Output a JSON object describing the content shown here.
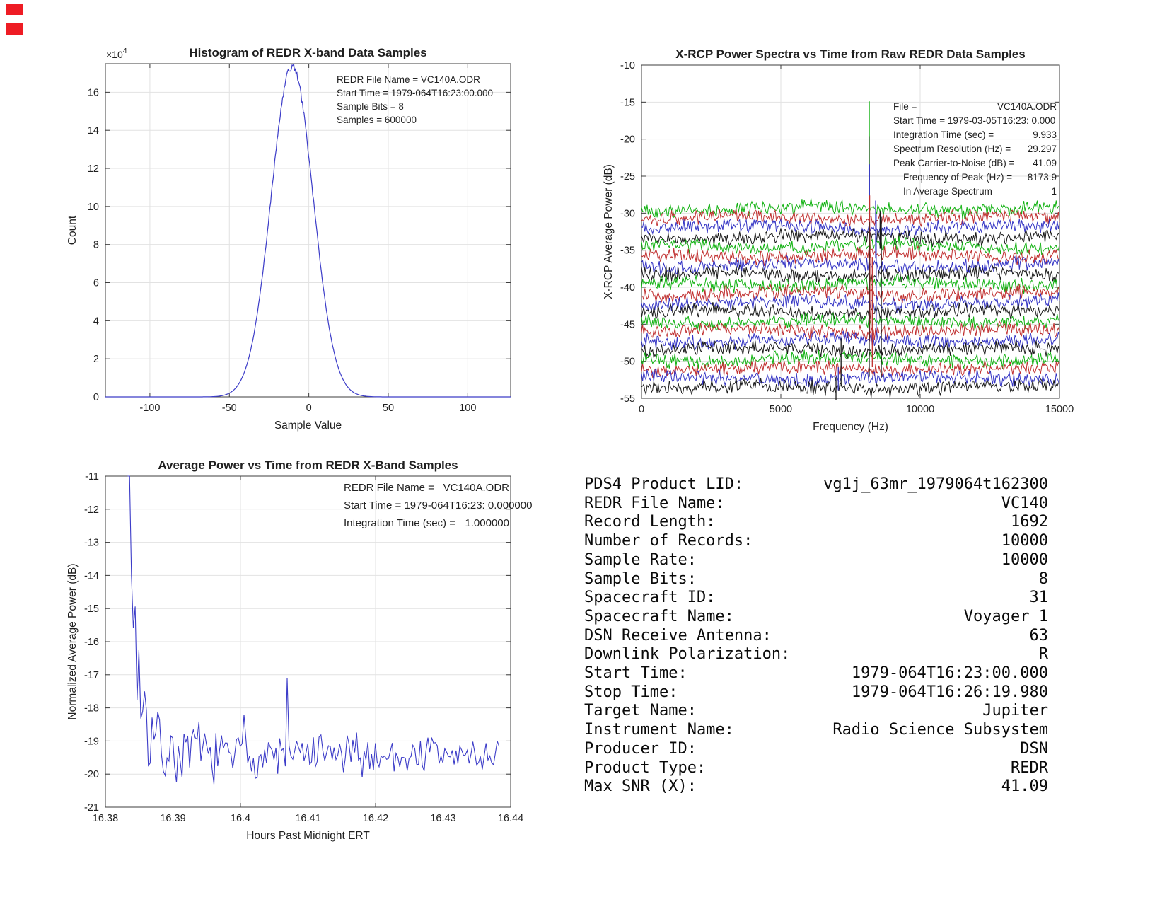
{
  "figure": {
    "background": "#ffffff",
    "markers": {
      "color": "#ee1c24",
      "count": 2
    }
  },
  "chart_data": [
    {
      "id": "histogram",
      "type": "line",
      "title": "Histogram of REDR X-band Data Samples",
      "xlabel": "Sample Value",
      "ylabel": "Count",
      "exp_label": {
        "base": "×10",
        "exp": "4"
      },
      "xlim": [
        -128,
        127
      ],
      "ylim": [
        0,
        175000
      ],
      "xticks": [
        -100,
        -50,
        0,
        50,
        100
      ],
      "xtick_labels": [
        "-100",
        "-50",
        "0",
        "50",
        "100"
      ],
      "yticks": [
        0,
        20000,
        40000,
        60000,
        80000,
        100000,
        120000,
        140000,
        160000
      ],
      "ytick_labels": [
        "0",
        "2",
        "4",
        "6",
        "8",
        "10",
        "12",
        "14",
        "16"
      ],
      "grid": true,
      "line_color": "#3c3cc8",
      "gauss": {
        "peak": 173500,
        "mean": -10.5,
        "sigma": 13.2,
        "noise_db": 2200,
        "seed": 3
      },
      "annotation_lines": [
        "REDR File Name = VC140A.ODR",
        "Start Time = 1979-064T16:23:00.000",
        "Sample Bits = 8",
        "Samples = 600000"
      ]
    },
    {
      "id": "spectra",
      "type": "line-multi",
      "title": "X-RCP Power Spectra vs Time from Raw REDR Data Samples",
      "xlabel": "Frequency (Hz)",
      "ylabel": "X-RCP Average Power (dB)",
      "xlim": [
        0,
        15000
      ],
      "ylim": [
        -55,
        -10
      ],
      "xticks": [
        0,
        5000,
        10000,
        15000
      ],
      "xtick_labels": [
        "0",
        "5000",
        "10000",
        "15000"
      ],
      "yticks": [
        -10,
        -15,
        -20,
        -25,
        -30,
        -35,
        -40,
        -45,
        -50,
        -55
      ],
      "ytick_labels": [
        "-10",
        "-15",
        "-20",
        "-25",
        "-30",
        "-35",
        "-40",
        "-45",
        "-50",
        "-55"
      ],
      "grid": true,
      "trace_count": 20,
      "trace_top_db": -29.4,
      "trace_step_db": -1.27,
      "noise_amp_db": 1.15,
      "seed": 42,
      "colors_cycle": [
        "#12b212",
        "#c03030",
        "#3434c4",
        "#1a1a1a"
      ],
      "spikes": [
        {
          "freq": 8174,
          "from_db": -29.4,
          "to_db": -14.9,
          "color": "#12b212"
        },
        {
          "freq": 8166,
          "from_db": -33.3,
          "to_db": -19.6,
          "color": "#1a1a1a"
        },
        {
          "freq": 8180,
          "from_db": -40.6,
          "to_db": -23.4,
          "color": "#3434c4"
        },
        {
          "freq": 8188,
          "from_db": -47.3,
          "to_db": -27.6,
          "color": "#c03030"
        },
        {
          "freq": 8172,
          "from_db": -52.1,
          "to_db": -31.2,
          "color": "#1a1a1a"
        },
        {
          "freq": 8402,
          "from_db": -36.1,
          "to_db": -28.3,
          "color": "#3434c4"
        },
        {
          "freq": 8422,
          "from_db": -47.4,
          "to_db": -30.1,
          "color": "#3434c4"
        },
        {
          "freq": 8562,
          "from_db": -34.8,
          "to_db": -29.7,
          "color": "#1a1a1a"
        },
        {
          "freq": 8605,
          "from_db": -52.2,
          "to_db": -30.5,
          "color": "#1a1a1a"
        },
        {
          "freq": 8232,
          "from_db": -44.8,
          "to_db": -33.4,
          "color": "#c03030"
        },
        {
          "freq": 8282,
          "from_db": -50.8,
          "to_db": -35.9,
          "color": "#c03030"
        },
        {
          "freq": 7162,
          "from_db": -53.4,
          "to_db": -46.9,
          "color": "#1a1a1a"
        },
        {
          "freq": 6980,
          "from_db": -52.1,
          "to_db": -55.2,
          "color": "#1a1a1a"
        },
        {
          "freq": 7062,
          "from_db": -50.8,
          "to_db": -53.9,
          "color": "#3434c4"
        }
      ],
      "legend_rows": [
        {
          "label": "File =",
          "value": "VC140A.ODR",
          "indent": false
        },
        {
          "label": "Start Time = 1979-03-05T16:23: 0.000",
          "value": "",
          "indent": false
        },
        {
          "label": "Integration Time (sec) =",
          "value": "9.933",
          "indent": false
        },
        {
          "label": "Spectrum Resolution (Hz) =",
          "value": "29.297",
          "indent": false
        },
        {
          "label": "Peak Carrier-to-Noise (dB) =",
          "value": "41.09",
          "indent": false
        },
        {
          "label": "Frequency of Peak (Hz) =",
          "value": "8173.9",
          "indent": true
        },
        {
          "label": "In Average Spectrum",
          "value": "1",
          "indent": true
        }
      ]
    },
    {
      "id": "avgpower",
      "type": "line",
      "title": "Average Power vs Time from REDR X-Band Samples",
      "xlabel": "Hours Past Midnight ERT",
      "ylabel": "Normalized Average Power (dB)",
      "xlim": [
        16.38,
        16.44
      ],
      "ylim": [
        -21,
        -11
      ],
      "xticks": [
        16.38,
        16.39,
        16.4,
        16.41,
        16.42,
        16.43,
        16.44
      ],
      "xtick_labels": [
        "16.38",
        "16.39",
        "16.4",
        "16.41",
        "16.42",
        "16.43",
        "16.44"
      ],
      "yticks": [
        -11,
        -12,
        -13,
        -14,
        -15,
        -16,
        -17,
        -18,
        -19,
        -20,
        -21
      ],
      "ytick_labels": [
        "-11",
        "-12",
        "-13",
        "-14",
        "-15",
        "-16",
        "-17",
        "-18",
        "-19",
        "-20",
        "-21"
      ],
      "grid": true,
      "line_color": "#3c3cc8",
      "signal": {
        "t_start": 16.3833,
        "dt_hours": 0.00027778,
        "n": 199,
        "plateau_db": -19.45,
        "decay_amp_db": 8.45,
        "decay_tau_pts": 5.0,
        "noise_base_db": 0.8,
        "noise_decay_amp_db": 2.3,
        "noise_tau_pts": 14,
        "clip_top_db": -11,
        "clip_bottom_db": -20.35,
        "seed": 7,
        "extra_spikes": [
          {
            "i": 38,
            "delta_db": 1.2
          },
          {
            "i": 62,
            "delta_db": 1.4
          },
          {
            "i": 85,
            "delta_db": 2.1
          },
          {
            "i": 160,
            "delta_db": 1.0
          }
        ]
      },
      "annotation_rows": [
        {
          "label": "REDR File Name =",
          "value": "VC140A.ODR"
        },
        {
          "label": "Start Time = 1979-064T16:23: 0.000000",
          "value": ""
        },
        {
          "label": "Integration Time (sec) =",
          "value": "1.000000"
        }
      ]
    }
  ],
  "metadata_panel": {
    "rows": [
      {
        "label": "PDS4 Product LID:",
        "value": "vg1j_63mr_1979064t162300"
      },
      {
        "label": "REDR File Name:",
        "value": "VC140"
      },
      {
        "label": "Record Length:",
        "value": "1692"
      },
      {
        "label": "Number of Records:",
        "value": "10000"
      },
      {
        "label": "Sample Rate:",
        "value": "10000"
      },
      {
        "label": "Sample Bits:",
        "value": "8"
      },
      {
        "label": "Spacecraft ID:",
        "value": "31"
      },
      {
        "label": "Spacecraft Name:",
        "value": "Voyager 1"
      },
      {
        "label": "DSN Receive Antenna:",
        "value": "63"
      },
      {
        "label": "Downlink Polarization:",
        "value": "R"
      },
      {
        "label": "Start Time:",
        "value": "1979-064T16:23:00.000"
      },
      {
        "label": "Stop Time:",
        "value": "1979-064T16:26:19.980"
      },
      {
        "label": "Target Name:",
        "value": "Jupiter"
      },
      {
        "label": "Instrument Name:",
        "value": "Radio Science Subsystem"
      },
      {
        "label": "Producer ID:",
        "value": "DSN"
      },
      {
        "label": "Product Type:",
        "value": "REDR"
      },
      {
        "label": "Max SNR (X):",
        "value": "41.09"
      }
    ]
  }
}
